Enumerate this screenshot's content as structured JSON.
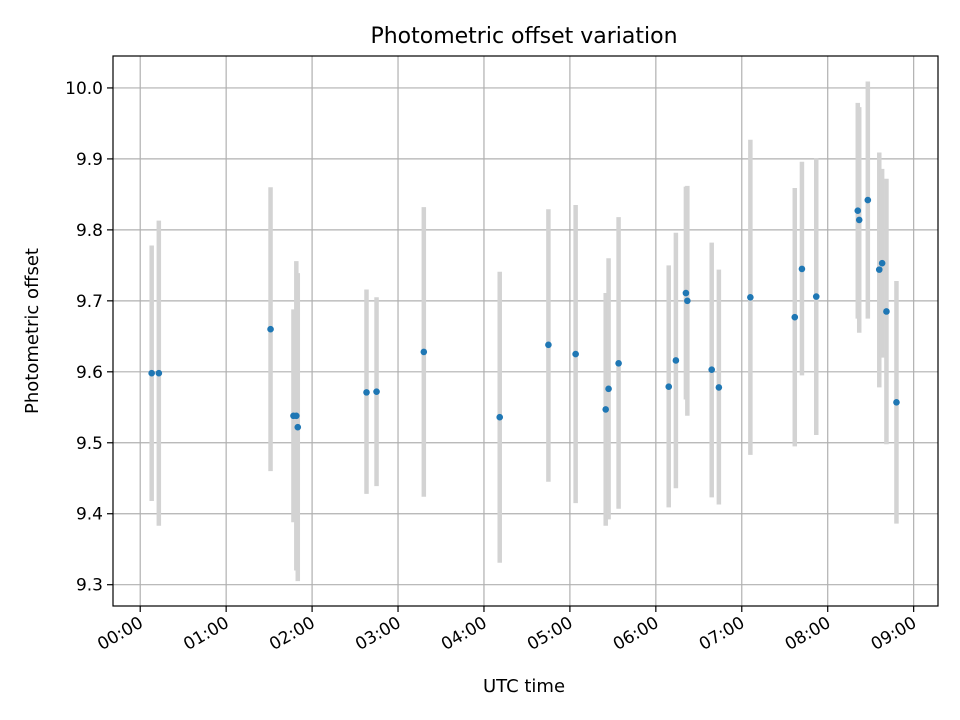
{
  "chart_data": {
    "type": "scatter",
    "title": "Photometric offset variation",
    "xlabel": "UTC time",
    "ylabel": "Photometric offset",
    "x_unit": "UTC hh:mm",
    "xlim": [
      "23:41",
      "09:17"
    ],
    "ylim": [
      9.27,
      10.045
    ],
    "grid": true,
    "xticks": [
      "00:00",
      "01:00",
      "02:00",
      "03:00",
      "04:00",
      "05:00",
      "06:00",
      "07:00",
      "08:00",
      "09:00"
    ],
    "yticks": [
      "9.3",
      "9.4",
      "9.5",
      "9.6",
      "9.7",
      "9.8",
      "9.9",
      "10.0"
    ],
    "colors": {
      "point": "#1f77b4",
      "errorbar": "#d3d3d3",
      "grid": "#b0b0b0"
    },
    "points": [
      {
        "x": "00:08",
        "y": 9.598,
        "lo": 9.418,
        "hi": 9.778
      },
      {
        "x": "00:13",
        "y": 9.598,
        "lo": 9.383,
        "hi": 9.813
      },
      {
        "x": "01:31",
        "y": 9.66,
        "lo": 9.46,
        "hi": 9.86
      },
      {
        "x": "01:47",
        "y": 9.538,
        "lo": 9.388,
        "hi": 9.688
      },
      {
        "x": "01:49",
        "y": 9.538,
        "lo": 9.32,
        "hi": 9.756
      },
      {
        "x": "01:50",
        "y": 9.522,
        "lo": 9.305,
        "hi": 9.739
      },
      {
        "x": "02:38",
        "y": 9.571,
        "lo": 9.428,
        "hi": 9.716
      },
      {
        "x": "02:45",
        "y": 9.572,
        "lo": 9.439,
        "hi": 9.705
      },
      {
        "x": "03:18",
        "y": 9.628,
        "lo": 9.424,
        "hi": 9.832
      },
      {
        "x": "04:11",
        "y": 9.536,
        "lo": 9.331,
        "hi": 9.741
      },
      {
        "x": "04:45",
        "y": 9.638,
        "lo": 9.445,
        "hi": 9.829
      },
      {
        "x": "05:04",
        "y": 9.625,
        "lo": 9.415,
        "hi": 9.835
      },
      {
        "x": "05:25",
        "y": 9.547,
        "lo": 9.383,
        "hi": 9.711
      },
      {
        "x": "05:27",
        "y": 9.576,
        "lo": 9.392,
        "hi": 9.76
      },
      {
        "x": "05:34",
        "y": 9.612,
        "lo": 9.407,
        "hi": 9.818
      },
      {
        "x": "06:09",
        "y": 9.579,
        "lo": 9.409,
        "hi": 9.75
      },
      {
        "x": "06:14",
        "y": 9.616,
        "lo": 9.436,
        "hi": 9.796
      },
      {
        "x": "06:21",
        "y": 9.711,
        "lo": 9.561,
        "hi": 9.861
      },
      {
        "x": "06:22",
        "y": 9.7,
        "lo": 9.538,
        "hi": 9.862
      },
      {
        "x": "06:39",
        "y": 9.603,
        "lo": 9.423,
        "hi": 9.782
      },
      {
        "x": "06:44",
        "y": 9.578,
        "lo": 9.413,
        "hi": 9.744
      },
      {
        "x": "07:06",
        "y": 9.705,
        "lo": 9.483,
        "hi": 9.927
      },
      {
        "x": "07:37",
        "y": 9.677,
        "lo": 9.495,
        "hi": 9.859
      },
      {
        "x": "07:42",
        "y": 9.745,
        "lo": 9.595,
        "hi": 9.896
      },
      {
        "x": "07:52",
        "y": 9.706,
        "lo": 9.511,
        "hi": 9.901
      },
      {
        "x": "08:21",
        "y": 9.827,
        "lo": 9.675,
        "hi": 9.979
      },
      {
        "x": "08:22",
        "y": 9.814,
        "lo": 9.655,
        "hi": 9.973
      },
      {
        "x": "08:28",
        "y": 9.842,
        "lo": 9.675,
        "hi": 10.009
      },
      {
        "x": "08:36",
        "y": 9.744,
        "lo": 9.578,
        "hi": 9.909
      },
      {
        "x": "08:38",
        "y": 9.753,
        "lo": 9.62,
        "hi": 9.886
      },
      {
        "x": "08:41",
        "y": 9.685,
        "lo": 9.498,
        "hi": 9.872
      },
      {
        "x": "08:48",
        "y": 9.557,
        "lo": 9.386,
        "hi": 9.728
      }
    ]
  }
}
